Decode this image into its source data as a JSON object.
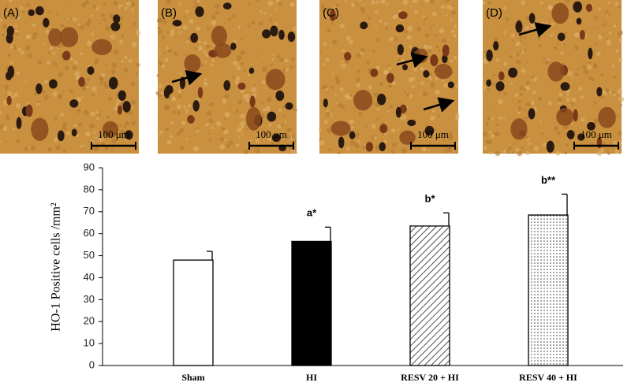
{
  "panels": [
    {
      "label": "(A)",
      "scale_bar": "100 μm"
    },
    {
      "label": "(B)",
      "scale_bar": "100 μm"
    },
    {
      "label": "(C)",
      "scale_bar": "100 μm"
    },
    {
      "label": "(D)",
      "scale_bar": "100 μm"
    }
  ],
  "chart_data": {
    "type": "bar",
    "y_label": "HO-1 Positive cells /mm²",
    "categories": [
      "Sham",
      "HI",
      "RESV 20 + HI",
      "RESV 40 + HI"
    ],
    "values": [
      48,
      56.5,
      63.5,
      68.5
    ],
    "errors": [
      4,
      6.5,
      6,
      9.5
    ],
    "fills": [
      "white",
      "black",
      "hatch",
      "dots"
    ],
    "annotations": [
      null,
      "a*",
      "b*",
      "b**"
    ],
    "ylim": [
      0,
      90
    ],
    "yticks": [
      0,
      10,
      20,
      30,
      40,
      50,
      60,
      70,
      80,
      90
    ]
  }
}
